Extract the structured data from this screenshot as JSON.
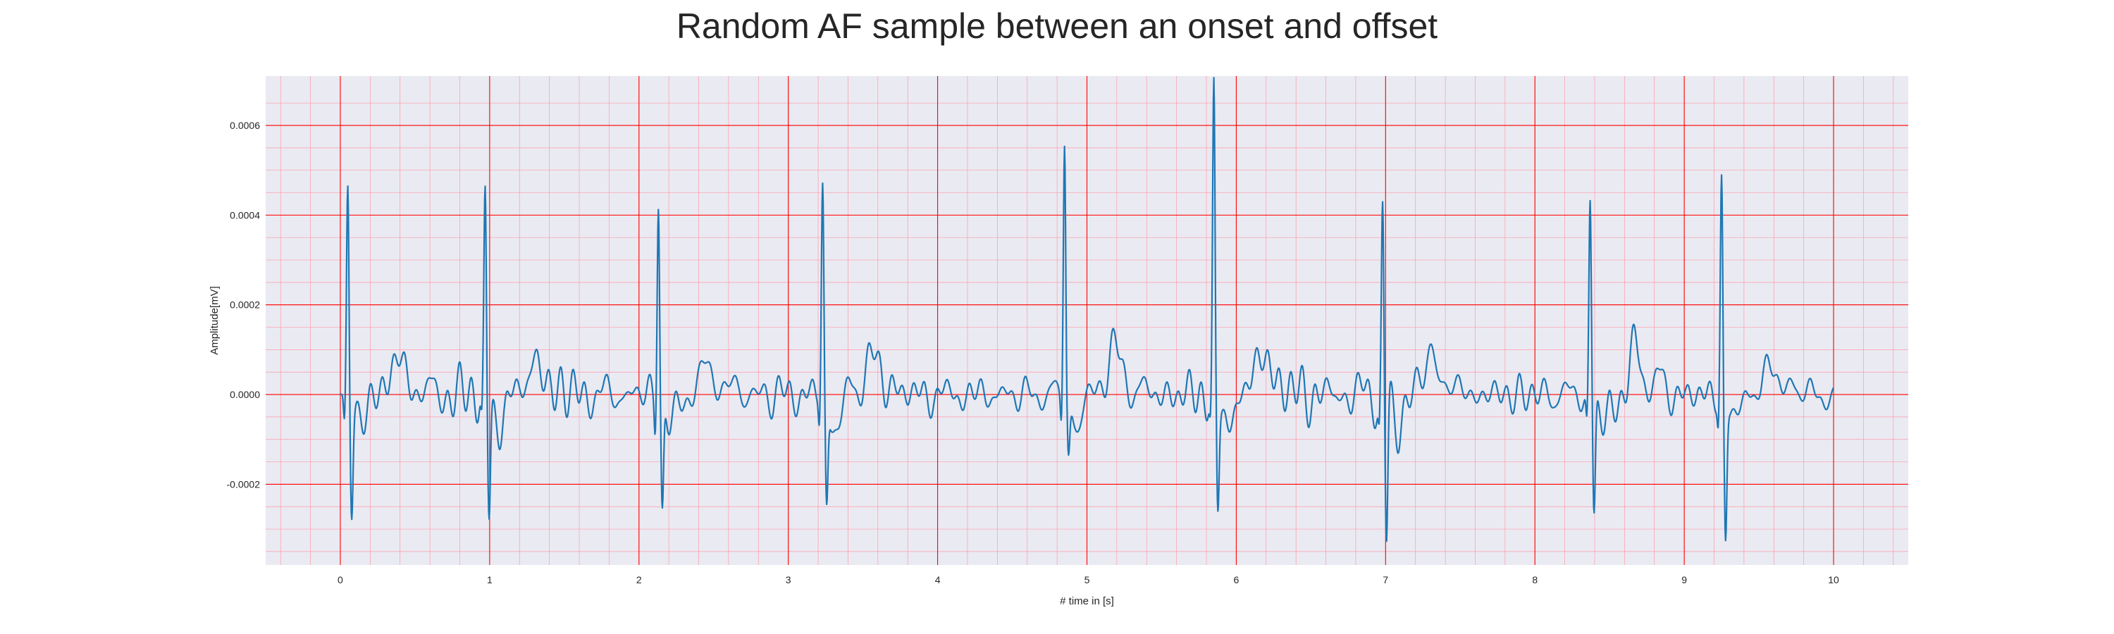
{
  "chart_data": {
    "type": "line",
    "title": "Random AF sample between an onset and offset",
    "xlabel": "# time in [s]",
    "ylabel": "Amplitude[mV]",
    "xlim": [
      -0.5,
      10.5
    ],
    "ylim": [
      -0.00038,
      0.00071
    ],
    "x_ticks": [
      0,
      1,
      2,
      3,
      4,
      5,
      6,
      7,
      8,
      9,
      10
    ],
    "x_tick_labels": [
      "0",
      "1",
      "2",
      "3",
      "4",
      "5",
      "6",
      "7",
      "8",
      "9",
      "10"
    ],
    "y_ticks": [
      -0.0002,
      0.0,
      0.0002,
      0.0004,
      0.0006
    ],
    "y_tick_labels": [
      "-0.0002",
      "0.0000",
      "0.0002",
      "0.0004",
      "0.0006"
    ],
    "grid": {
      "major": true,
      "minor": true,
      "major_color": "#ff0000",
      "minor_color": "#ff9aa8"
    },
    "colors": {
      "line": "#1f77b4",
      "plot_background": "#eaeaf2",
      "page_background": "#ffffff"
    },
    "beats": [
      {
        "t": 0.05,
        "r": 0.00049,
        "s": -0.00023,
        "t_wave": 8e-05
      },
      {
        "t": 0.97,
        "r": 0.00044,
        "s": -0.00026,
        "t_wave": 7e-05
      },
      {
        "t": 2.13,
        "r": 0.000455,
        "s": -0.00026,
        "t_wave": 6e-05
      },
      {
        "t": 3.23,
        "r": 0.000455,
        "s": -0.00024,
        "t_wave": 9e-05
      },
      {
        "t": 4.85,
        "r": 0.000575,
        "s": -0.00012,
        "t_wave": 0.000105
      },
      {
        "t": 5.85,
        "r": 0.00066,
        "s": -0.00024,
        "t_wave": 0.0001
      },
      {
        "t": 6.98,
        "r": 0.000425,
        "s": -0.00033,
        "t_wave": 9e-05
      },
      {
        "t": 8.37,
        "r": 0.000445,
        "s": -0.00026,
        "t_wave": 9e-05
      },
      {
        "t": 9.25,
        "r": 0.00047,
        "s": -0.000315,
        "t_wave": 6e-05
      }
    ],
    "x_range": [
      0,
      10
    ],
    "samples_hz": 300
  }
}
